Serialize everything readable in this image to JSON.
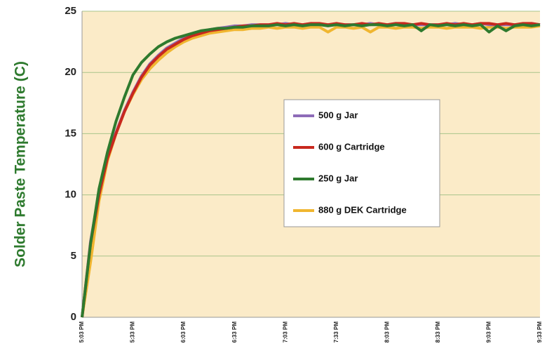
{
  "chart_data": {
    "type": "line",
    "y_label": "Solder Paste Temperature (C)",
    "categories": [
      "5:03 PM",
      null,
      null,
      null,
      null,
      null,
      "5:33 PM",
      null,
      null,
      null,
      null,
      null,
      "6:03 PM",
      null,
      null,
      null,
      null,
      null,
      "6:33 PM",
      null,
      null,
      null,
      null,
      null,
      "7:03 PM",
      null,
      null,
      null,
      null,
      null,
      "7:33 PM",
      null,
      null,
      null,
      null,
      null,
      "8:03 PM",
      null,
      null,
      null,
      null,
      null,
      "8:33 PM",
      null,
      null,
      null,
      null,
      null,
      "9:03 PM",
      null,
      null,
      null,
      null,
      null,
      "9:33 PM"
    ],
    "series": [
      {
        "name": "500 g Jar",
        "color": "#8e6bb8",
        "values": [
          0,
          6.2,
          10.2,
          13.1,
          15.1,
          16.9,
          18.4,
          19.7,
          20.7,
          21.4,
          22.0,
          22.4,
          22.8,
          23.1,
          23.3,
          23.5,
          23.6,
          23.7,
          23.8,
          23.8,
          23.9,
          23.9,
          23.9,
          23.9,
          24.0,
          23.9,
          23.9,
          24.0,
          23.9,
          23.9,
          23.9,
          23.9,
          23.9,
          23.9,
          24.0,
          23.9,
          23.9,
          24.0,
          23.9,
          23.9,
          23.9,
          23.9,
          23.9,
          23.9,
          24.0,
          23.9,
          23.9,
          24.0,
          23.9,
          23.9,
          23.9,
          23.9,
          23.9,
          24.0,
          23.9
        ]
      },
      {
        "name": "600 g Cartridge",
        "color": "#c8281e",
        "values": [
          0,
          6,
          10,
          13,
          15,
          16.8,
          18.3,
          19.6,
          20.6,
          21.3,
          21.9,
          22.3,
          22.7,
          23.0,
          23.2,
          23.4,
          23.5,
          23.6,
          23.7,
          23.8,
          23.8,
          23.9,
          23.9,
          24.0,
          23.9,
          24.0,
          23.9,
          24.0,
          24.0,
          23.9,
          24.0,
          23.9,
          23.9,
          24.0,
          23.9,
          24.0,
          23.9,
          24.0,
          24.0,
          23.9,
          24.0,
          23.9,
          23.9,
          24.0,
          23.9,
          24.0,
          23.9,
          24.0,
          24.0,
          23.9,
          24.0,
          23.9,
          24.0,
          24.0,
          23.9
        ]
      },
      {
        "name": "250 g Jar",
        "color": "#2e7a2e",
        "values": [
          0,
          6,
          10.5,
          13.5,
          16,
          18,
          19.8,
          20.8,
          21.5,
          22.1,
          22.5,
          22.8,
          23.0,
          23.2,
          23.4,
          23.5,
          23.6,
          23.6,
          23.7,
          23.7,
          23.8,
          23.8,
          23.8,
          23.9,
          23.8,
          23.9,
          23.8,
          23.9,
          23.9,
          23.8,
          23.9,
          23.8,
          23.9,
          23.8,
          23.9,
          23.9,
          23.8,
          23.9,
          23.8,
          23.9,
          23.4,
          23.9,
          23.8,
          23.9,
          23.8,
          23.9,
          23.8,
          23.9,
          23.3,
          23.8,
          23.4,
          23.8,
          23.9,
          23.8,
          23.9
        ]
      },
      {
        "name": "880 g DEK Cartridge",
        "color": "#f0b630",
        "values": [
          0,
          4.5,
          9.5,
          12.8,
          15,
          16.8,
          18.2,
          19.4,
          20.3,
          21.0,
          21.6,
          22.1,
          22.5,
          22.8,
          23.0,
          23.2,
          23.3,
          23.4,
          23.5,
          23.5,
          23.6,
          23.6,
          23.7,
          23.6,
          23.7,
          23.7,
          23.6,
          23.7,
          23.7,
          23.3,
          23.7,
          23.7,
          23.6,
          23.7,
          23.3,
          23.7,
          23.7,
          23.6,
          23.7,
          23.7,
          23.6,
          23.7,
          23.7,
          23.6,
          23.7,
          23.7,
          23.7,
          23.6,
          23.7,
          23.7,
          23.6,
          23.7,
          23.7,
          23.7,
          23.8
        ]
      }
    ],
    "ylim": [
      0,
      25
    ],
    "yticks": [
      0,
      5,
      10,
      15,
      20,
      25
    ],
    "grid": true
  }
}
